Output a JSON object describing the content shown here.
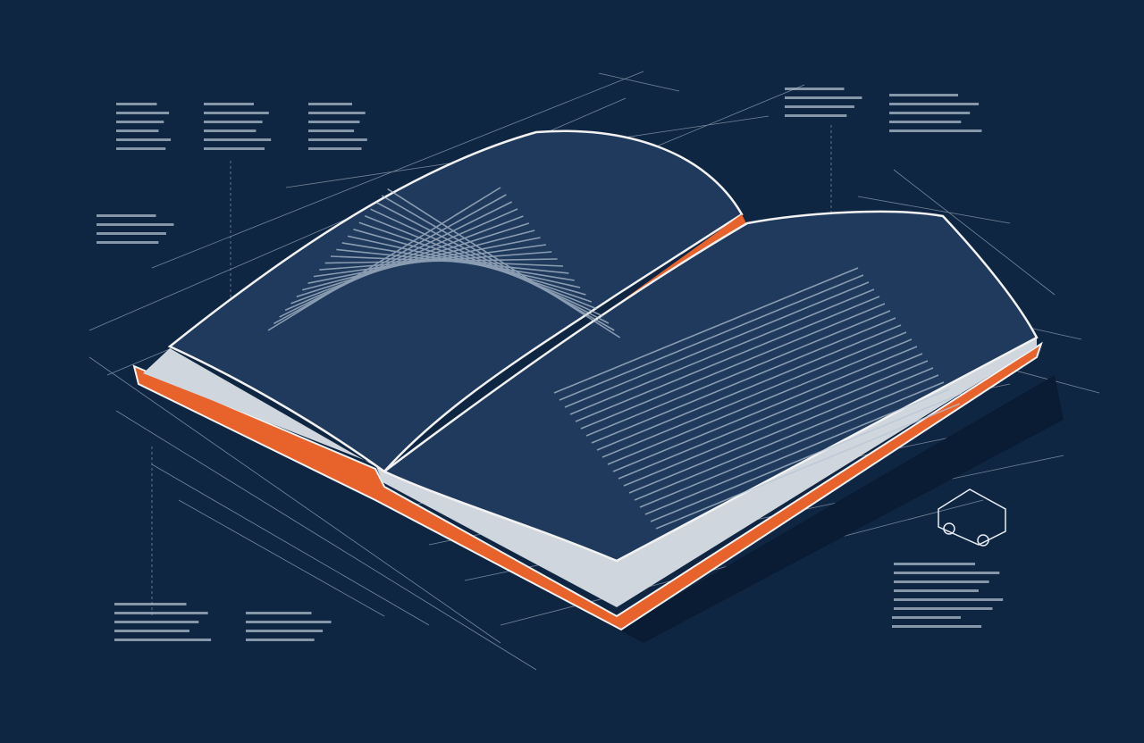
{
  "illustration": {
    "subject": "open-book-blueprint",
    "colors": {
      "background": "#0f2643",
      "page": "#1d3656",
      "outline": "#f2f2f2",
      "accent_orange": "#e8622c",
      "line": "#c9d3df"
    }
  }
}
